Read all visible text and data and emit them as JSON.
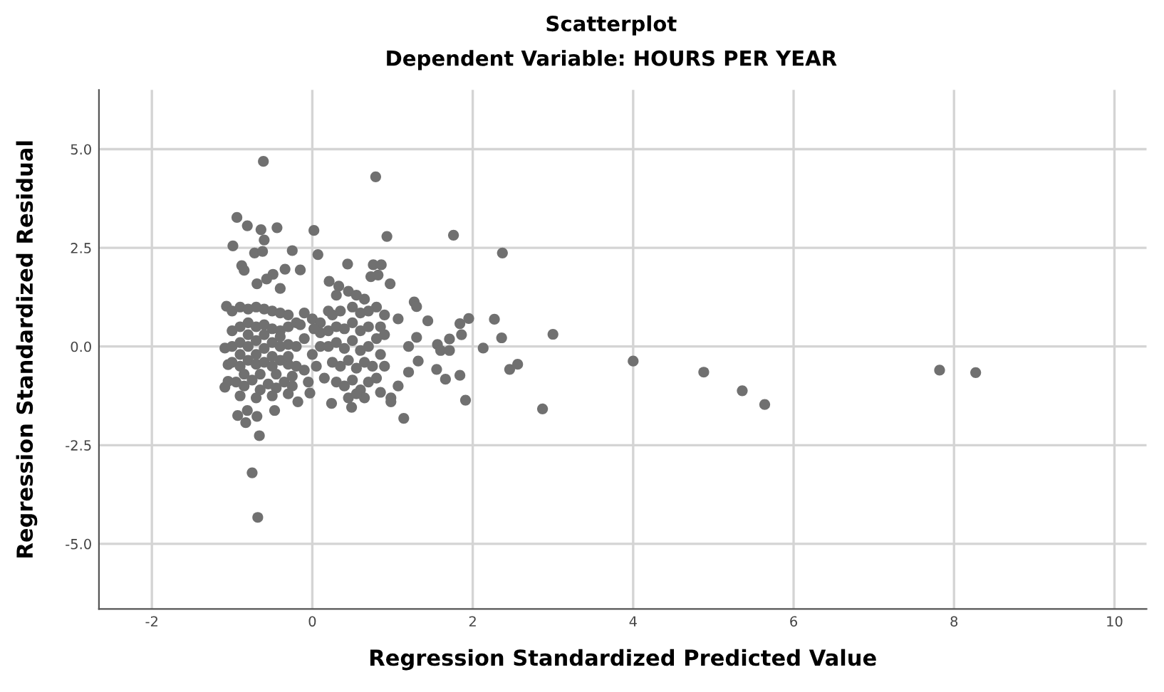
{
  "chart_data": {
    "type": "scatter",
    "title": "Scatterplot",
    "subtitle": "Dependent Variable: HOURS PER YEAR",
    "xlabel": "Regression Standardized Predicted Value",
    "ylabel": "Regression Standardized Residual",
    "xlim": [
      -2.66,
      10.4
    ],
    "ylim": [
      -6.65,
      6.5
    ],
    "xticks": [
      -2,
      0,
      2,
      4,
      6,
      8,
      10
    ],
    "yticks": [
      {
        "value": -5,
        "label": "-5.0"
      },
      {
        "value": -2.5,
        "label": "-2.5"
      },
      {
        "value": 0,
        "label": "0.0"
      },
      {
        "value": 2.5,
        "label": "2.5"
      },
      {
        "value": 5,
        "label": "5.0"
      }
    ],
    "grid": true,
    "marker": "circle",
    "series": [
      {
        "color": "#707070",
        "x": [
          -0.61,
          0.79,
          -0.94,
          -0.81,
          -0.64,
          -0.44,
          -0.6,
          0.02,
          -0.99,
          -0.72,
          -0.62,
          -0.25,
          0.07,
          0.93,
          1.76,
          2.37,
          -0.88,
          -0.85,
          -0.34,
          -0.15,
          0.44,
          0.76,
          0.86,
          0.73,
          0.82,
          0.97,
          0.21,
          0.33,
          -0.49,
          -0.57,
          -0.69,
          -0.4,
          1.27,
          1.3,
          1.44,
          1.07,
          1.84,
          1.95,
          2.27,
          1.86,
          2.36,
          3.0,
          1.71,
          1.3,
          2.13,
          1.56,
          1.6,
          1.71,
          1.2,
          1.32,
          1.55,
          1.66,
          1.84,
          1.2,
          2.46,
          2.56,
          1.91,
          1.14,
          2.87,
          1.07,
          0.98,
          0.98,
          0.85,
          0.49,
          0.24,
          -0.03,
          -0.18,
          -0.47,
          -0.93,
          -0.81,
          -0.69,
          -0.83,
          -0.66,
          -0.75,
          -0.68,
          -1.09,
          -1.07,
          -1.09,
          -1.05,
          -1.05,
          4.0,
          4.88,
          5.36,
          5.64,
          7.82,
          8.27,
          -1.0,
          -0.9,
          -0.8,
          -0.7,
          -0.6,
          -0.5,
          -0.4,
          -0.3,
          -1.0,
          -0.9,
          -0.8,
          -0.7,
          -0.6,
          -0.5,
          -0.4,
          -0.3,
          -0.2,
          -1.0,
          -0.9,
          -0.8,
          -0.7,
          -0.6,
          -0.5,
          -0.4,
          -0.3,
          -0.2,
          -0.1,
          -1.0,
          -0.9,
          -0.8,
          -0.7,
          -0.6,
          -0.5,
          -0.4,
          -0.3,
          -0.2,
          -0.1,
          -0.95,
          -0.85,
          -0.75,
          -0.65,
          -0.55,
          -0.45,
          -0.35,
          -0.25,
          -0.9,
          -0.7,
          -0.5,
          -0.3,
          -0.9,
          -0.8,
          -0.7,
          -0.6,
          -0.5,
          -0.4,
          -0.3,
          -0.65,
          -0.45,
          -0.85,
          -0.25,
          -0.1,
          0.0,
          0.1,
          0.0,
          0.1,
          0.05,
          0.15,
          -0.05,
          0.1,
          0.2,
          -0.15,
          0.02,
          0.3,
          0.45,
          0.55,
          0.65,
          0.8,
          0.9,
          0.25,
          0.35,
          0.5,
          0.6,
          0.7,
          0.85,
          0.2,
          0.3,
          0.4,
          0.5,
          0.6,
          0.7,
          0.8,
          0.9,
          0.2,
          0.3,
          0.4,
          0.5,
          0.6,
          0.7,
          0.85,
          0.25,
          0.35,
          0.45,
          0.55,
          0.65,
          0.75,
          0.9,
          0.3,
          0.4,
          0.5,
          0.6,
          0.7,
          0.8,
          0.45,
          0.65,
          0.55
        ],
        "values": [
          4.69,
          4.3,
          3.27,
          3.06,
          2.96,
          3.01,
          2.7,
          2.94,
          2.55,
          2.37,
          2.41,
          2.43,
          2.33,
          2.79,
          2.82,
          2.37,
          2.05,
          1.93,
          1.96,
          1.94,
          2.09,
          2.07,
          2.07,
          1.77,
          1.81,
          1.59,
          1.65,
          1.53,
          1.83,
          1.71,
          1.59,
          1.47,
          1.13,
          1.01,
          0.65,
          0.7,
          0.58,
          0.71,
          0.69,
          0.3,
          0.22,
          0.31,
          0.19,
          0.23,
          -0.04,
          0.05,
          -0.1,
          -0.1,
          0.0,
          -0.37,
          -0.58,
          -0.83,
          -0.73,
          -0.65,
          -0.58,
          -0.45,
          -1.36,
          -1.82,
          -1.58,
          -1.0,
          -1.3,
          -1.4,
          -1.16,
          -1.54,
          -1.44,
          -1.18,
          -1.4,
          -1.62,
          -1.75,
          -1.62,
          -1.77,
          -1.93,
          -2.26,
          -3.2,
          -4.33,
          -0.04,
          1.02,
          -1.03,
          -0.88,
          -0.46,
          -0.37,
          -0.65,
          -1.12,
          -1.47,
          -0.6,
          -0.66,
          0.9,
          1.0,
          0.95,
          1.0,
          0.95,
          0.9,
          0.85,
          0.8,
          0.4,
          0.5,
          0.6,
          0.5,
          0.55,
          0.45,
          0.4,
          0.5,
          0.6,
          0.0,
          0.1,
          0.0,
          0.15,
          -0.05,
          0.1,
          0.0,
          0.05,
          0.0,
          0.2,
          -0.4,
          -0.5,
          -0.35,
          -0.45,
          -0.4,
          -0.5,
          -0.35,
          -0.45,
          -0.5,
          -0.6,
          -0.9,
          -1.0,
          -0.85,
          -1.1,
          -0.95,
          -1.05,
          -0.9,
          -1.0,
          -1.25,
          -1.3,
          -1.25,
          -1.2,
          -0.2,
          0.3,
          -0.2,
          0.3,
          -0.25,
          0.25,
          -0.25,
          -0.7,
          -0.7,
          -0.7,
          -0.75,
          0.85,
          0.7,
          0.6,
          -0.2,
          0.0,
          -0.5,
          -0.8,
          -0.9,
          0.35,
          0.9,
          0.55,
          0.45,
          1.3,
          1.4,
          1.3,
          1.2,
          1.0,
          0.8,
          0.8,
          0.9,
          1.0,
          0.85,
          0.9,
          0.5,
          0.4,
          0.5,
          0.45,
          0.6,
          0.4,
          0.5,
          0.2,
          0.3,
          0.0,
          0.1,
          -0.05,
          0.15,
          -0.1,
          0.0,
          -0.2,
          -0.4,
          -0.5,
          -0.35,
          -0.55,
          -0.4,
          -0.5,
          -0.5,
          -0.9,
          -1.0,
          -0.85,
          -1.1,
          -0.9,
          -0.8,
          -1.3,
          -1.3,
          -1.2
        ]
      }
    ]
  }
}
